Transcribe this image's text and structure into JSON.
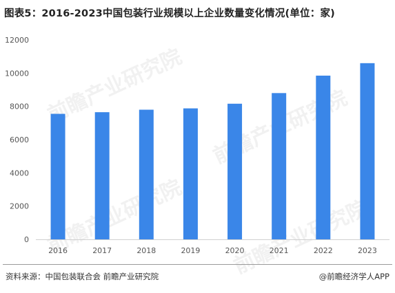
{
  "header": {
    "title": "图表5：2016-2023中国包装行业规模以上企业数量变化情况(单位：家)"
  },
  "footer": {
    "source": "资料来源：中国包装联合会 前瞻产业研究院",
    "brand": "@前瞻经济学人APP"
  },
  "watermark": {
    "text": "前瞻产业研究院"
  },
  "colors": {
    "bar": "#3a86e8",
    "axis_text": "#555555",
    "axis_line": "#d0d0d0"
  },
  "chart_data": {
    "type": "bar",
    "categories": [
      "2016",
      "2017",
      "2018",
      "2019",
      "2020",
      "2021",
      "2022",
      "2023"
    ],
    "values": [
      7550,
      7650,
      7800,
      7880,
      8160,
      8800,
      9850,
      10600
    ],
    "title": "图表5：2016-2023中国包装行业规模以上企业数量变化情况(单位：家)",
    "xlabel": "",
    "ylabel": "",
    "ylim": [
      0,
      12000
    ],
    "yticks": [
      0,
      2000,
      4000,
      6000,
      8000,
      10000,
      12000
    ],
    "grid": false,
    "legend": "none"
  }
}
